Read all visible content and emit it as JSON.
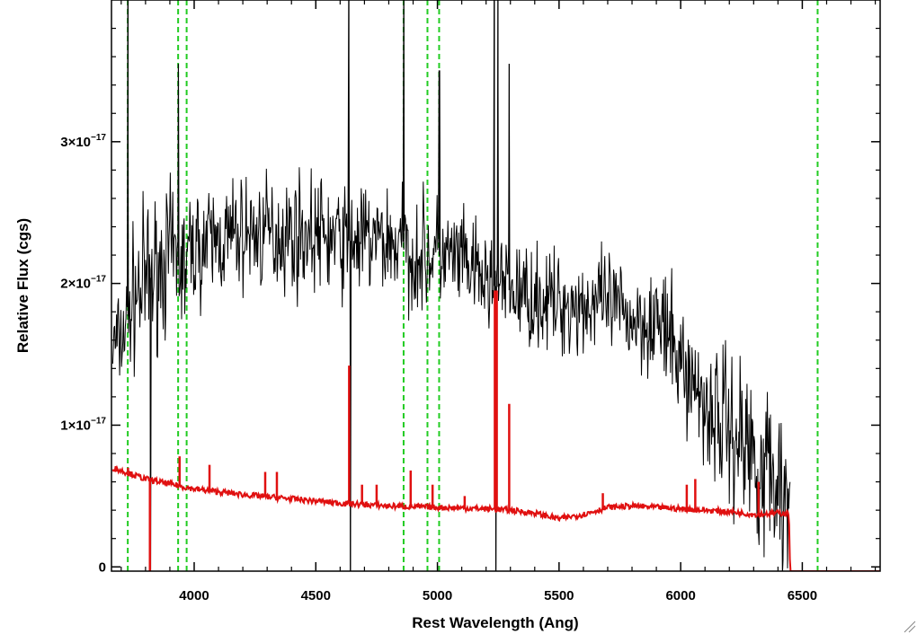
{
  "chart_data": {
    "type": "line",
    "xlabel": "Rest Wavelength (Ang)",
    "ylabel": "Relative Flux (cgs)",
    "xlim": [
      3660,
      6820
    ],
    "ylim": [
      -3e-19,
      4e-17
    ],
    "x_ticks": [
      {
        "value": 4000,
        "label": "4000"
      },
      {
        "value": 4500,
        "label": "4500"
      },
      {
        "value": 5000,
        "label": "5000"
      },
      {
        "value": 5500,
        "label": "5500"
      },
      {
        "value": 6000,
        "label": "6000"
      },
      {
        "value": 6500,
        "label": "6500"
      }
    ],
    "y_ticks": [
      {
        "value": 0,
        "mantissa": "0",
        "exponent": ""
      },
      {
        "value": 1e-17,
        "mantissa": "1×10",
        "exponent": "−17"
      },
      {
        "value": 2e-17,
        "mantissa": "2×10",
        "exponent": "−17"
      },
      {
        "value": 3e-17,
        "mantissa": "3×10",
        "exponent": "−17"
      }
    ],
    "grid": false,
    "legend": "none",
    "series": [
      {
        "color": "#000000",
        "style": "noisy-line",
        "continuum_x": [
          3665,
          3700,
          3750,
          3800,
          3850,
          3900,
          3950,
          4000,
          4100,
          4200,
          4300,
          4400,
          4500,
          4600,
          4700,
          4800,
          4900,
          5000,
          5100,
          5200,
          5300,
          5400,
          5500,
          5600,
          5700,
          5800,
          5900,
          6000,
          6100,
          6200,
          6300,
          6400,
          6450
        ],
        "continuum_y": [
          1.55e-17,
          1.6e-17,
          1.9e-17,
          2e-17,
          2.1e-17,
          2.2e-17,
          2.1e-17,
          2.25e-17,
          2.3e-17,
          2.35e-17,
          2.35e-17,
          2.35e-17,
          2.35e-17,
          2.3e-17,
          2.3e-17,
          2.3e-17,
          2.2e-17,
          2.2e-17,
          2.15e-17,
          2e-17,
          1.95e-17,
          1.9e-17,
          1.85e-17,
          1.85e-17,
          1.85e-17,
          1.75e-17,
          1.75e-17,
          1.45e-17,
          1.15e-17,
          1e-17,
          8e-18,
          6e-18,
          4e-18
        ],
        "noise_sigma": [
          2.5e-18,
          2e-18,
          3e-18,
          3.5e-18,
          3e-18,
          3e-18,
          3e-18,
          2.5e-18,
          2.5e-18,
          2.5e-18,
          2.5e-18,
          2.5e-18,
          2.5e-18,
          2.5e-18,
          2.5e-18,
          2.5e-18,
          2.5e-18,
          2.5e-18,
          2.2e-18,
          2.2e-18,
          2.2e-18,
          2.2e-18,
          2.2e-18,
          2.2e-18,
          2.2e-18,
          2.2e-18,
          2.5e-18,
          2.5e-18,
          3e-18,
          3.5e-18,
          4e-18,
          4e-18,
          4e-18
        ],
        "spikes": [
          {
            "x": 3728,
            "y": 4e-17
          },
          {
            "x": 3820,
            "y": -3e-19
          },
          {
            "x": 3935,
            "y": 3.55e-17
          },
          {
            "x": 4636,
            "y": 4e-17
          },
          {
            "x": 4642,
            "y": -3e-19
          },
          {
            "x": 4862,
            "y": 4e-17
          },
          {
            "x": 5008,
            "y": 3.5e-17
          },
          {
            "x": 5234,
            "y": 4e-17
          },
          {
            "x": 5240,
            "y": -3e-19
          },
          {
            "x": 5249,
            "y": 4e-17
          },
          {
            "x": 5295,
            "y": 3.55e-17
          }
        ]
      },
      {
        "color": "#e01010",
        "style": "model-line",
        "continuum_x": [
          3665,
          3800,
          4000,
          4200,
          4400,
          4600,
          4800,
          5000,
          5200,
          5300,
          5400,
          5500,
          5600,
          5700,
          5800,
          5900,
          6000,
          6100,
          6200,
          6300,
          6400,
          6445,
          6450,
          6820
        ],
        "continuum_y": [
          7e-18,
          6.2e-18,
          5.5e-18,
          5.1e-18,
          4.8e-18,
          4.5e-18,
          4.3e-18,
          4.2e-18,
          4.1e-18,
          4e-18,
          3.8e-18,
          3.4e-18,
          3.7e-18,
          4.2e-18,
          4.3e-18,
          4.2e-18,
          4.1e-18,
          4e-18,
          3.9e-18,
          3.7e-18,
          3.8e-18,
          3.8e-18,
          -3e-19,
          -3e-19
        ],
        "lines": [
          {
            "x": 3728,
            "y": 7e-18
          },
          {
            "x": 3818,
            "y": -3e-19
          },
          {
            "x": 3940,
            "y": 7.8e-18
          },
          {
            "x": 4063,
            "y": 7.2e-18
          },
          {
            "x": 4292,
            "y": 6.7e-18
          },
          {
            "x": 4340,
            "y": 6.7e-18
          },
          {
            "x": 4637,
            "y": 1.42e-17
          },
          {
            "x": 4690,
            "y": 5.8e-18
          },
          {
            "x": 4750,
            "y": 5.8e-18
          },
          {
            "x": 4890,
            "y": 6.8e-18
          },
          {
            "x": 4980,
            "y": 5.8e-18
          },
          {
            "x": 5112,
            "y": 5e-18
          },
          {
            "x": 5236,
            "y": 1.95e-17
          },
          {
            "x": 5244,
            "y": 1.95e-17
          },
          {
            "x": 5295,
            "y": 1.15e-17
          },
          {
            "x": 5680,
            "y": 5.2e-18
          },
          {
            "x": 6025,
            "y": 5.8e-18
          },
          {
            "x": 6060,
            "y": 6.2e-18
          },
          {
            "x": 6320,
            "y": 6e-18
          }
        ]
      }
    ],
    "vertical_markers": {
      "color": "#22cc22",
      "style": "dashed",
      "x": [
        3727,
        3934,
        3969,
        4861,
        4959,
        5007,
        6563
      ]
    }
  }
}
